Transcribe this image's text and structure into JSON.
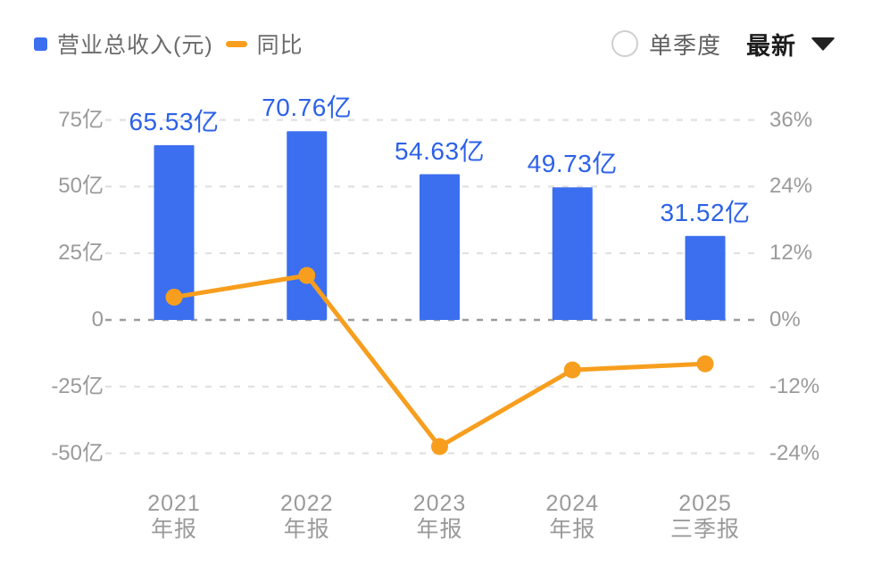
{
  "header": {
    "legend": [
      {
        "label": "营业总收入(元)",
        "color": "#3B6FF0",
        "type": "bar"
      },
      {
        "label": "同比",
        "color": "#F79E1E",
        "type": "line"
      }
    ],
    "controls": {
      "radio_label": "单季度",
      "radio_checked": false,
      "dropdown_label": "最新"
    }
  },
  "chart_data": {
    "type": "bar+line",
    "title": "",
    "categories": [
      {
        "line1": "2021",
        "line2": "年报"
      },
      {
        "line1": "2022",
        "line2": "年报"
      },
      {
        "line1": "2023",
        "line2": "年报"
      },
      {
        "line1": "2024",
        "line2": "年报"
      },
      {
        "line1": "2025",
        "line2": "三季报"
      }
    ],
    "bar_series": {
      "name": "营业总收入(元)",
      "unit": "亿",
      "values": [
        65.53,
        70.76,
        54.63,
        49.73,
        31.52
      ],
      "labels": [
        "65.53亿",
        "70.76亿",
        "54.63亿",
        "49.73亿",
        "31.52亿"
      ],
      "color": "#3B6FF0",
      "label_color": "#2C61E8",
      "axis": "left"
    },
    "line_series": {
      "name": "同比",
      "unit": "%",
      "values": [
        4.1,
        8.0,
        -22.8,
        -9.0,
        -7.9
      ],
      "color": "#F79E1E",
      "axis": "right"
    },
    "left_axis": {
      "unit_per_gridline": 25,
      "ticks": [
        {
          "label": "75亿",
          "value": 75
        },
        {
          "label": "50亿",
          "value": 50
        },
        {
          "label": "25亿",
          "value": 25
        },
        {
          "label": "0",
          "value": 0
        },
        {
          "label": "-25亿",
          "value": -25
        },
        {
          "label": "-50亿",
          "value": -50
        }
      ]
    },
    "right_axis": {
      "unit_per_gridline": 12,
      "ticks": [
        {
          "label": "36%",
          "value": 36
        },
        {
          "label": "24%",
          "value": 24
        },
        {
          "label": "12%",
          "value": 12
        },
        {
          "label": "0%",
          "value": 0
        },
        {
          "label": "-12%",
          "value": -12
        },
        {
          "label": "-24%",
          "value": -24
        }
      ]
    },
    "grid": {
      "style": "dashed",
      "color": "#e0e0e0",
      "zero_line_color": "#9c9c9c"
    }
  }
}
